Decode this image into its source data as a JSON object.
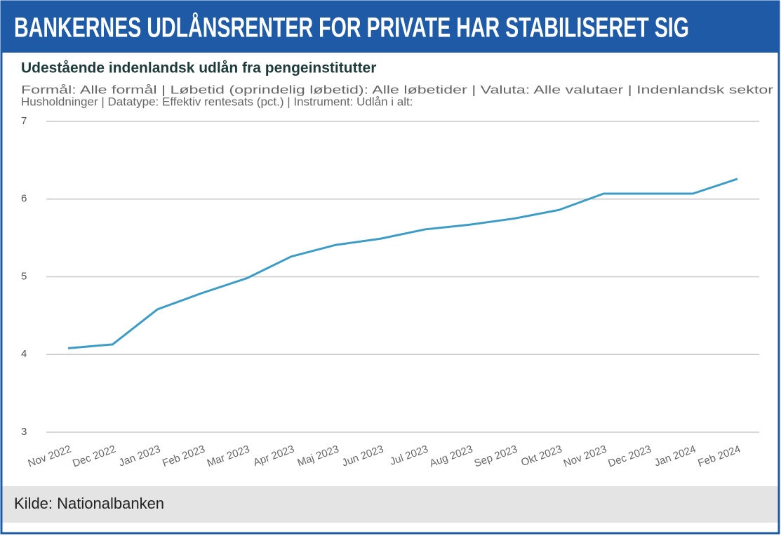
{
  "chart_data": {
    "type": "line",
    "title": "BANKERNES UDLÅNSRENTER FOR PRIVATE HAR STABILISERET SIG",
    "subtitle": "Udestående indenlandsk udlån fra pengeinstitutter",
    "description": [
      "Formål: Alle formål | Løbetid (oprindelig løbetid): Alle løbetider | Valuta: Alle valutaer | Indenlandsk sektor",
      "Husholdninger | Datatype: Effektiv rentesats (pct.) | Instrument: Udlån i alt:"
    ],
    "source": "Kilde: Nationalbanken",
    "categories": [
      "Nov 2022",
      "Dec 2022",
      "Jan 2023",
      "Feb 2023",
      "Mar 2023",
      "Apr 2023",
      "Maj 2023",
      "Jun 2023",
      "Jul 2023",
      "Aug 2023",
      "Sep 2023",
      "Okt 2023",
      "Nov 2023",
      "Dec 2023",
      "Jan 2024",
      "Feb 2024"
    ],
    "values": [
      4.08,
      4.13,
      4.58,
      4.79,
      4.98,
      5.26,
      5.41,
      5.49,
      5.61,
      5.67,
      5.75,
      5.86,
      6.07,
      6.07,
      6.07,
      6.26
    ],
    "color": "#3d9cc6",
    "ylim": [
      3,
      7
    ],
    "yticks": [
      3,
      4,
      5,
      6,
      7
    ],
    "grid": true
  }
}
